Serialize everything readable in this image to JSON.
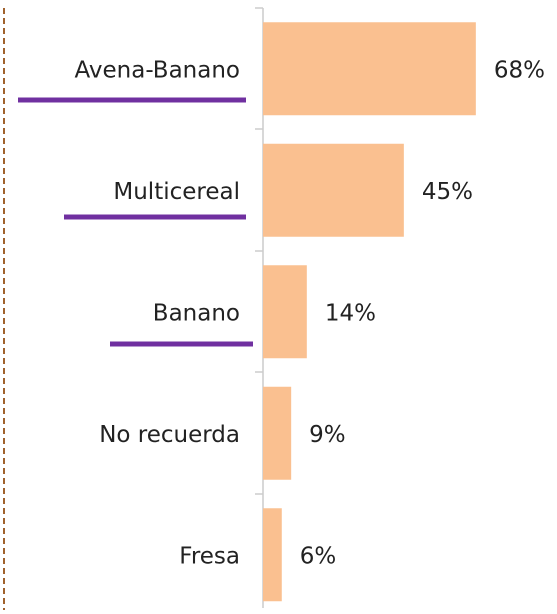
{
  "chart_data": {
    "type": "bar",
    "orientation": "horizontal",
    "categories": [
      "Avena-Banano",
      "Multicereal",
      "Banano",
      "No recuerda",
      "Fresa"
    ],
    "values": [
      68,
      45,
      14,
      9,
      6
    ],
    "value_labels": [
      "68%",
      "45%",
      "14%",
      "9%",
      "6%"
    ],
    "color": "#fac090"
  }
}
